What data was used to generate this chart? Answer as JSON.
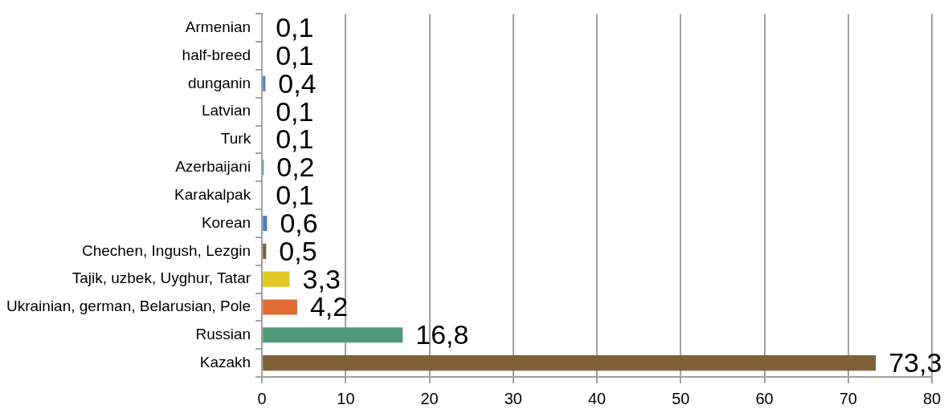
{
  "chart_data": {
    "type": "bar",
    "orientation": "horizontal",
    "categories": [
      "Armenian",
      "half-breed",
      "dunganin",
      "Latvian",
      "Turk",
      "Azerbaijani",
      "Karakalpak",
      "Korean",
      "Chechen, Ingush, Lezgin",
      "Tajik, uzbek, Uyghur, Tatar",
      "Ukrainian, german, Belarusian, Pole",
      "Russian",
      "Kazakh"
    ],
    "values": [
      0.1,
      0.1,
      0.4,
      0.1,
      0.1,
      0.2,
      0.1,
      0.6,
      0.5,
      3.3,
      4.2,
      16.8,
      73.3
    ],
    "colors": [
      "#4a7ec4",
      "#4a7ec4",
      "#4a7ec4",
      "#4a7ec4",
      "#4a7ec4",
      "#4a7ec4",
      "#4a7ec4",
      "#4a7ec4",
      "#7f6038",
      "#e3c724",
      "#e06c33",
      "#4f9a78",
      "#7f6038"
    ],
    "value_labels": [
      "0,1",
      "0,1",
      "0,4",
      "0,1",
      "0,1",
      "0,2",
      "0,1",
      "0,6",
      "0,5",
      "3,3",
      "4,2",
      "16,8",
      "73,3"
    ],
    "xlim": [
      0,
      80
    ],
    "xticks": [
      0,
      10,
      20,
      30,
      40,
      50,
      60,
      70,
      80
    ],
    "grid": "x",
    "legend": false
  }
}
